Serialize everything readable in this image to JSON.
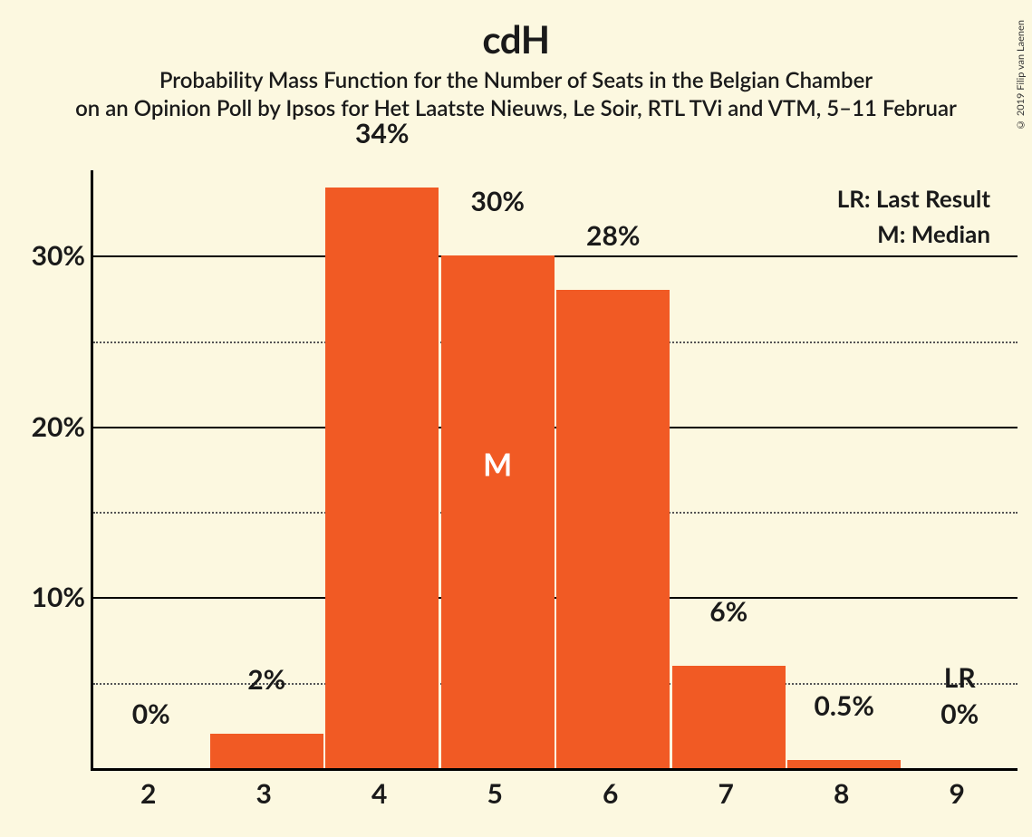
{
  "copyright": "© 2019 Filip van Laenen",
  "title": "cdH",
  "subtitle1": "Probability Mass Function for the Number of Seats in the Belgian Chamber",
  "subtitle2": "on an Opinion Poll by Ipsos for Het Laatste Nieuws, Le Soir, RTL TVi and VTM, 5–11 Februar",
  "legend": {
    "lr": "LR: Last Result",
    "m": "M: Median"
  },
  "chart": {
    "type": "bar",
    "bar_color": "#f15a24",
    "background_color": "#fcf8e0",
    "axis_color": "#000000",
    "grid_major_color": "#000000",
    "grid_minor_color": "#555555",
    "font_color": "#1a1a1a",
    "ylim_max": 35,
    "y_major_ticks": [
      10,
      20,
      30
    ],
    "y_minor_ticks": [
      5,
      15,
      25
    ],
    "y_labels": [
      "10%",
      "20%",
      "30%"
    ],
    "categories": [
      "2",
      "3",
      "4",
      "5",
      "6",
      "7",
      "8",
      "9"
    ],
    "values": [
      0,
      2,
      34,
      30,
      28,
      6,
      0.5,
      0
    ],
    "value_labels": [
      "0%",
      "2%",
      "34%",
      "30%",
      "28%",
      "6%",
      "0.5%",
      "0%"
    ],
    "median_index": 3,
    "median_text": "M",
    "lr_index": 7,
    "lr_text": "LR",
    "bar_rel_width": 0.98,
    "title_fontsize": 42,
    "subtitle_fontsize": 24,
    "axis_label_fontsize": 30,
    "bar_label_fontsize": 30,
    "legend_fontsize": 26
  }
}
